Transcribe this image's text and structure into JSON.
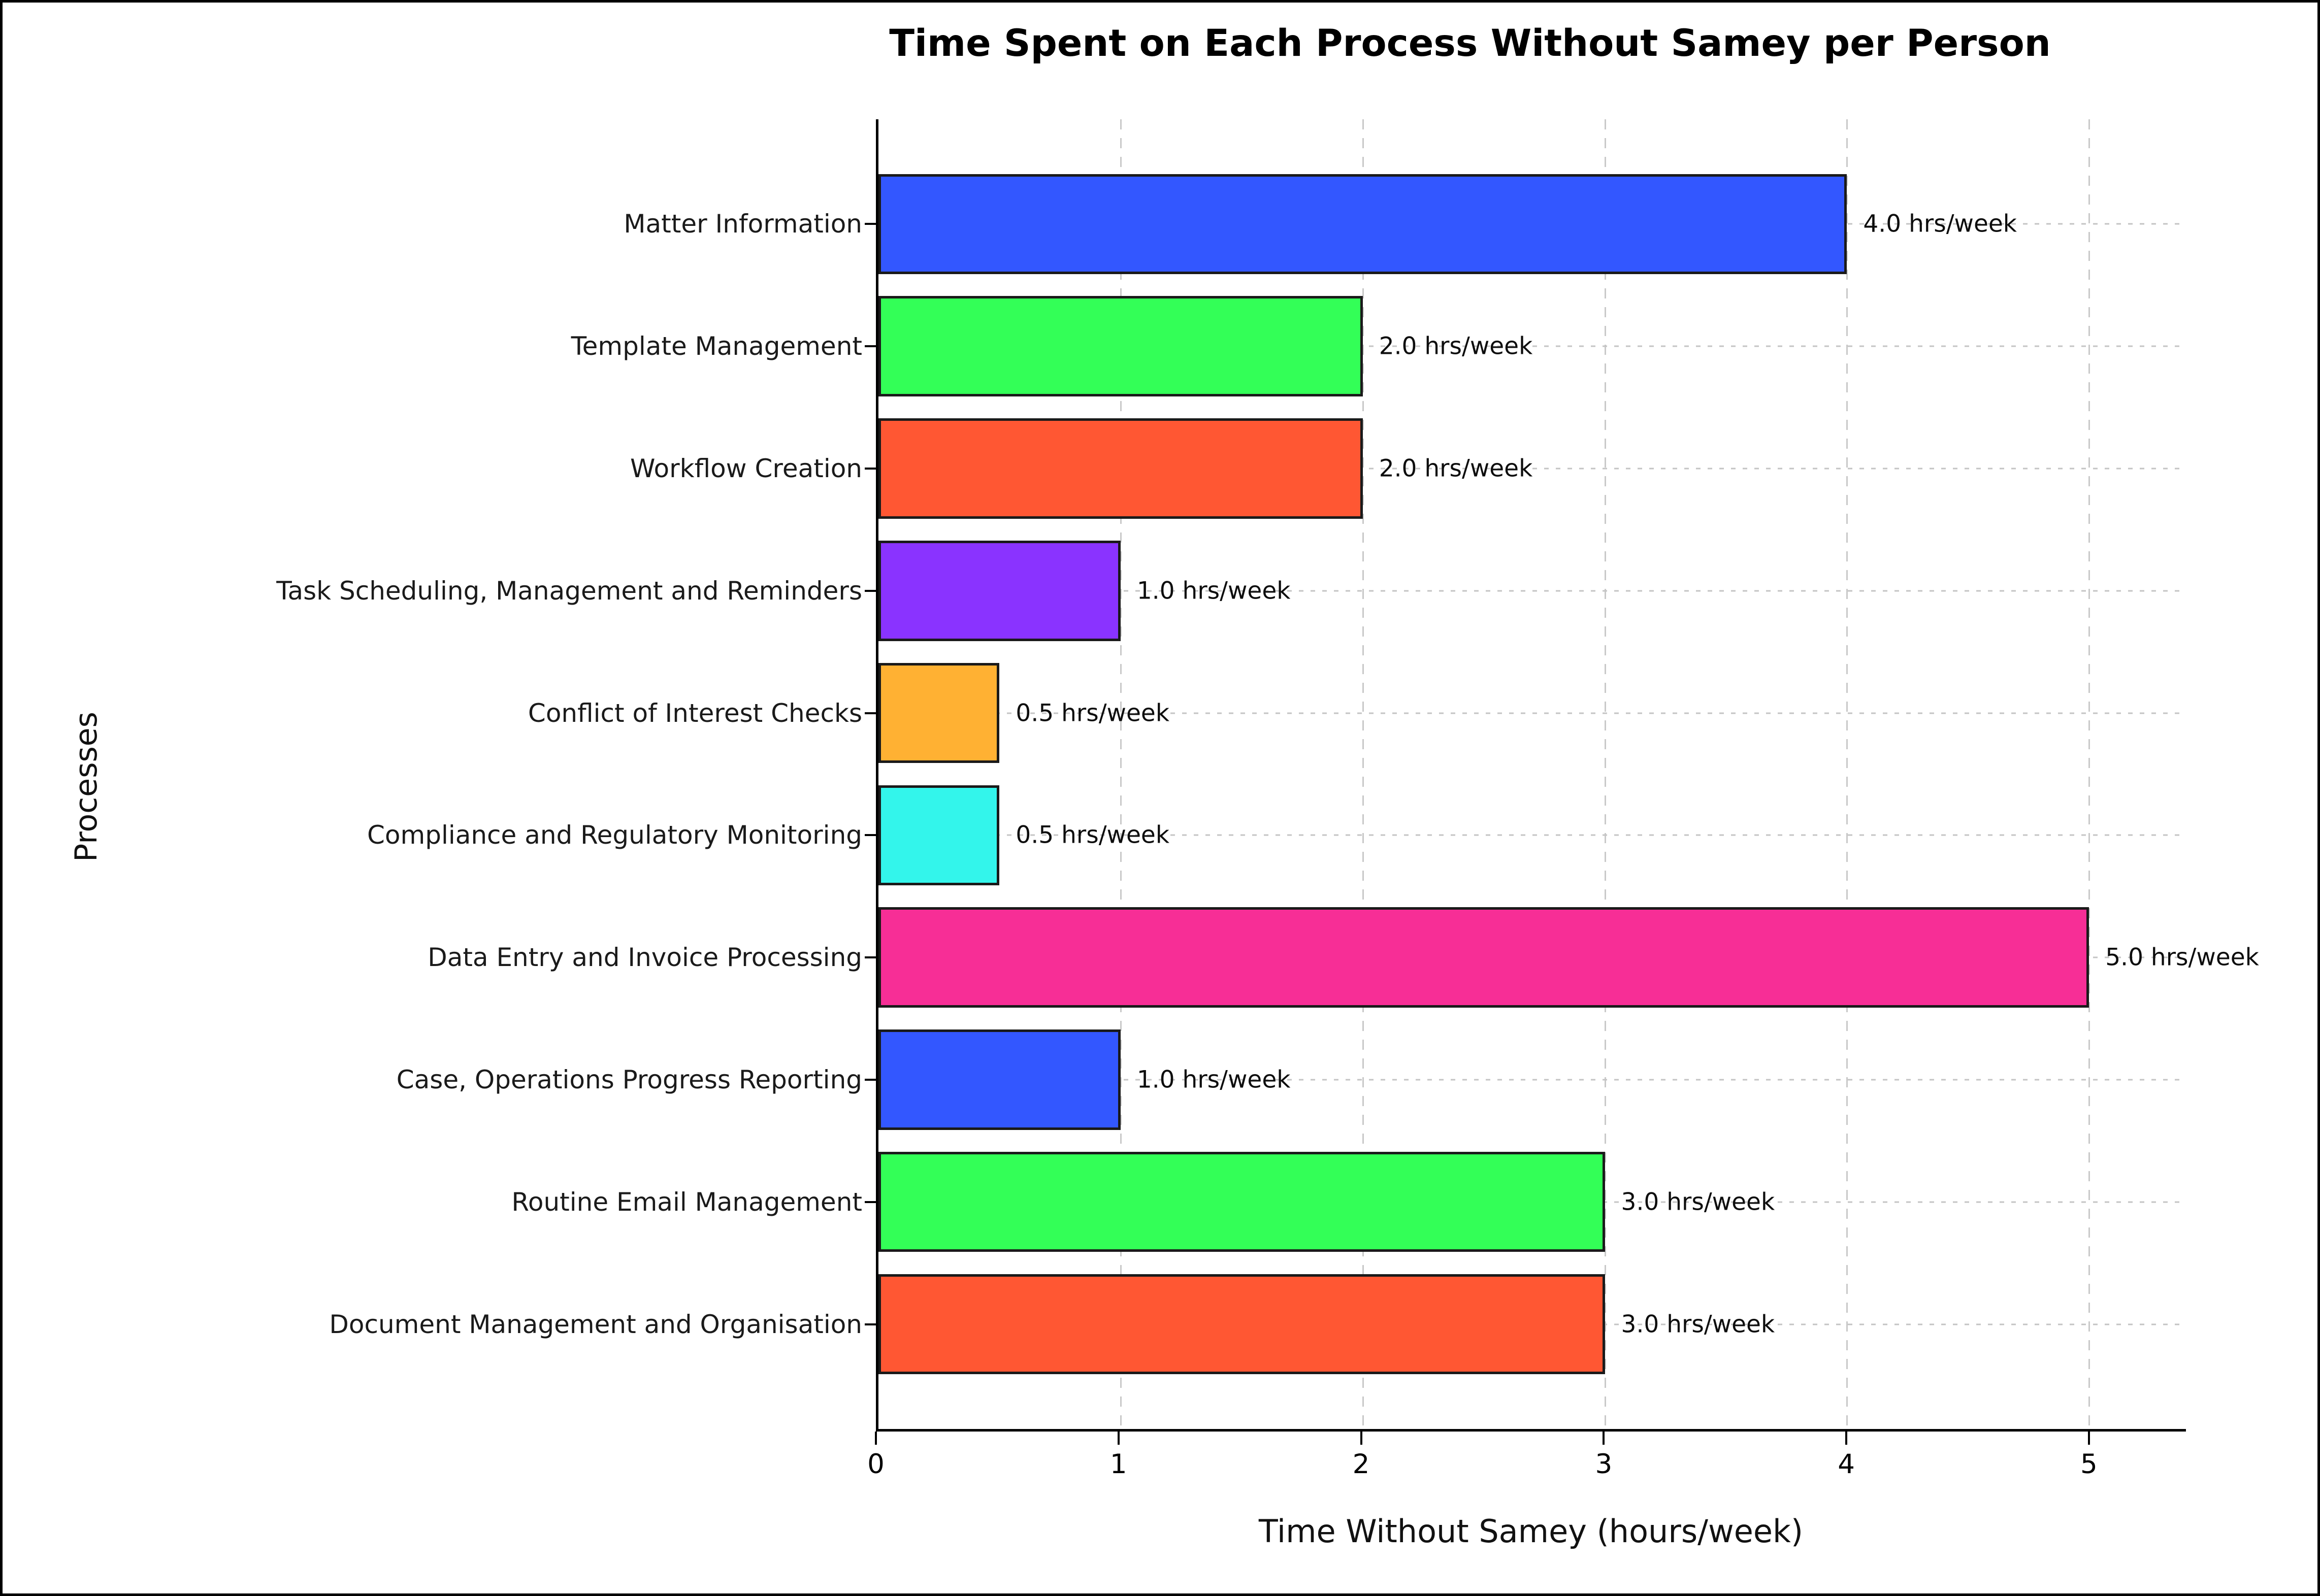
{
  "figure": {
    "background_color": "#ffffff",
    "frame_color": "#000000"
  },
  "chart_data": {
    "type": "bar",
    "orientation": "horizontal",
    "title": "Time Spent on Each Process Without Samey per Person",
    "xlabel": "Time Without Samey (hours/week)",
    "ylabel": "Processes",
    "categories": [
      "Matter Information",
      "Template Management",
      "Workflow Creation",
      "Task Scheduling, Management and Reminders",
      "Conflict of Interest Checks",
      "Compliance and Regulatory Monitoring",
      "Data Entry and Invoice Processing",
      "Case, Operations Progress Reporting",
      "Routine Email Management",
      "Document Management and Organisation"
    ],
    "values": [
      4.0,
      2.0,
      2.0,
      1.0,
      0.5,
      0.5,
      5.0,
      1.0,
      3.0,
      3.0
    ],
    "bar_labels": [
      "4.0 hrs/week",
      "2.0 hrs/week",
      "2.0 hrs/week",
      "1.0 hrs/week",
      "0.5 hrs/week",
      "0.5 hrs/week",
      "5.0 hrs/week",
      "1.0 hrs/week",
      "3.0 hrs/week",
      "3.0 hrs/week"
    ],
    "colors": [
      "#3357FF",
      "#33FF57",
      "#FF5733",
      "#8A33FF",
      "#FFB133",
      "#33F5EB",
      "#F72E96",
      "#3357FF",
      "#33FF57",
      "#FF5733"
    ],
    "bar_edge_color": "#1a1a1a",
    "x_ticks": [
      "0",
      "1",
      "2",
      "3",
      "4",
      "5"
    ],
    "xlim": [
      0,
      5.4
    ],
    "grid": "dashed",
    "gridline_color": "#c9c9c9",
    "legend": "none"
  }
}
